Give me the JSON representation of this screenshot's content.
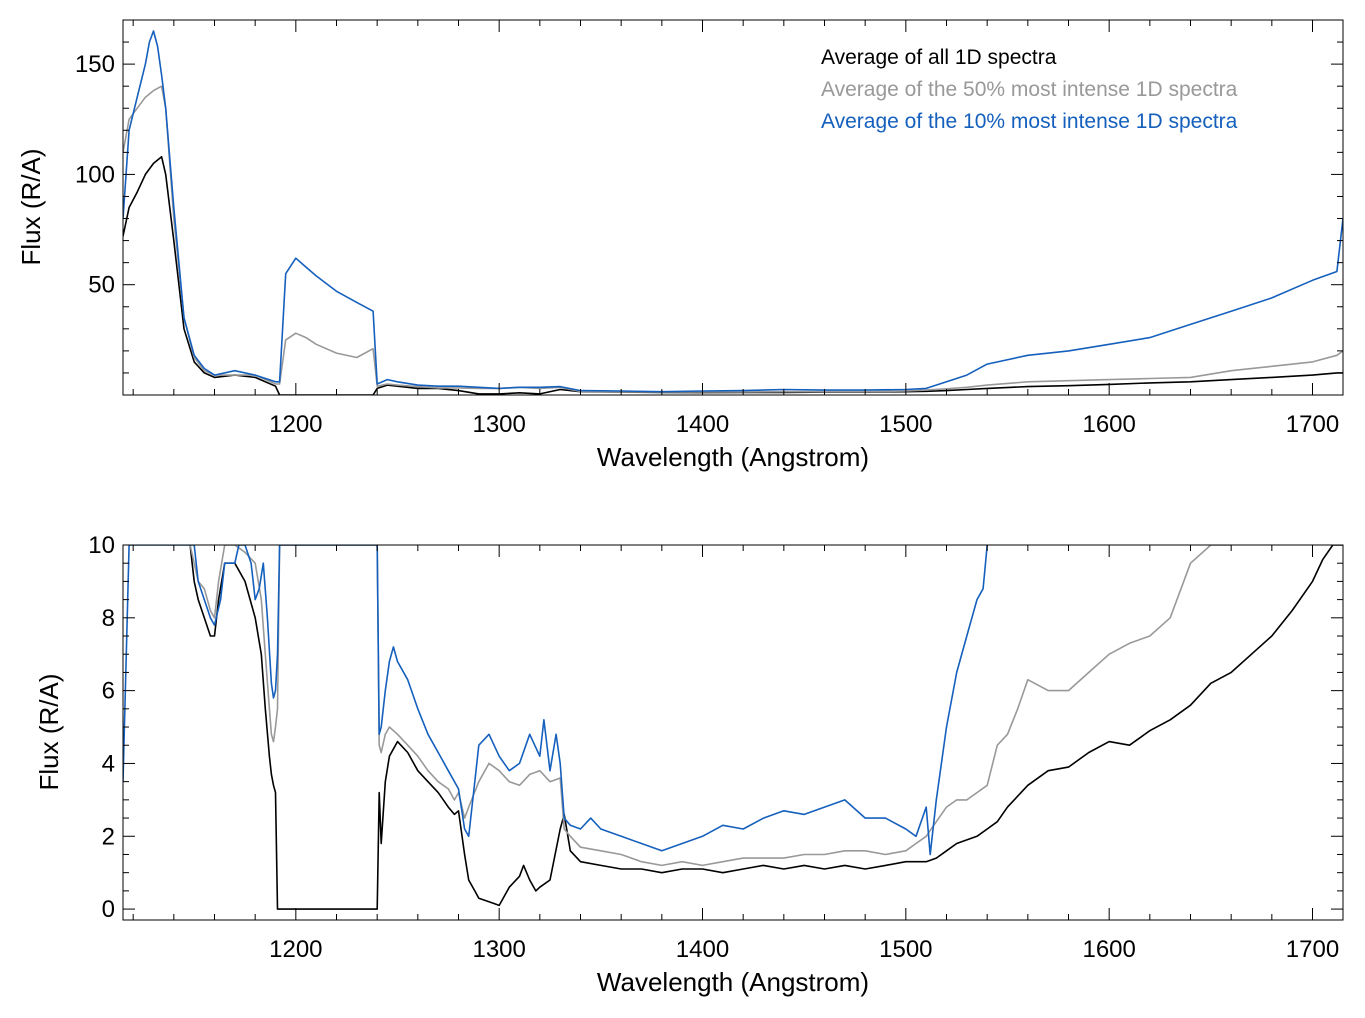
{
  "chart_data": [
    {
      "type": "line",
      "title": "",
      "xlabel": "Wavelength (Angstrom)",
      "ylabel": "Flux (R/A)",
      "xlim": [
        1115,
        1715
      ],
      "ylim": [
        0,
        170
      ],
      "xticks": [
        1200,
        1300,
        1400,
        1500,
        1600,
        1700
      ],
      "yticks": [
        50,
        100,
        150
      ],
      "legend_placement": "top-right",
      "grid": false,
      "series": [
        {
          "name": "Average of all 1D spectra",
          "color": "#000000",
          "x": [
            1115,
            1118,
            1122,
            1126,
            1130,
            1134,
            1136,
            1140,
            1145,
            1150,
            1155,
            1160,
            1170,
            1180,
            1190,
            1192,
            1195,
            1200,
            1210,
            1220,
            1230,
            1238,
            1240,
            1245,
            1250,
            1260,
            1270,
            1280,
            1290,
            1300,
            1310,
            1320,
            1330,
            1340,
            1360,
            1380,
            1400,
            1420,
            1440,
            1460,
            1480,
            1500,
            1510,
            1520,
            1530,
            1540,
            1560,
            1580,
            1600,
            1620,
            1640,
            1660,
            1680,
            1700,
            1712,
            1715
          ],
          "y": [
            72,
            85,
            92,
            100,
            105,
            108,
            100,
            70,
            30,
            15,
            10,
            8,
            9,
            8,
            4,
            0,
            0,
            0,
            0,
            0,
            0,
            0,
            3,
            4.5,
            4,
            3,
            3,
            2,
            0.5,
            0.5,
            1,
            0.5,
            2.5,
            1.5,
            1.3,
            1.2,
            1.1,
            1.2,
            1.2,
            1.3,
            1.3,
            1.5,
            1.7,
            2,
            2.5,
            3,
            3.8,
            4.2,
            4.8,
            5.5,
            6,
            7,
            8,
            9,
            10,
            10
          ]
        },
        {
          "name": "Average of the 50% most intense 1D spectra",
          "color": "#999999",
          "x": [
            1115,
            1118,
            1122,
            1126,
            1130,
            1134,
            1136,
            1140,
            1145,
            1150,
            1155,
            1160,
            1170,
            1180,
            1190,
            1192,
            1195,
            1200,
            1205,
            1210,
            1220,
            1230,
            1238,
            1240,
            1245,
            1250,
            1260,
            1270,
            1280,
            1290,
            1300,
            1310,
            1320,
            1330,
            1340,
            1360,
            1380,
            1400,
            1420,
            1440,
            1460,
            1480,
            1500,
            1510,
            1520,
            1530,
            1540,
            1560,
            1580,
            1600,
            1620,
            1640,
            1660,
            1680,
            1700,
            1712,
            1715
          ],
          "y": [
            110,
            125,
            130,
            135,
            138,
            140,
            130,
            80,
            35,
            17,
            11,
            9,
            9,
            9,
            5,
            5,
            25,
            28,
            26,
            23,
            19,
            17,
            21,
            4,
            5,
            4.5,
            3.8,
            3.2,
            3.2,
            3,
            3,
            3.5,
            3,
            3.5,
            1.6,
            1.4,
            1.3,
            1.4,
            1.4,
            1.5,
            1.5,
            1.5,
            1.8,
            2.2,
            2.8,
            3.5,
            4.5,
            6,
            6.5,
            7,
            7.5,
            8,
            11,
            13,
            15,
            18,
            20
          ]
        },
        {
          "name": "Average of the 10% most intense 1D spectra",
          "color": "#1560bd",
          "x": [
            1115,
            1118,
            1122,
            1126,
            1128,
            1130,
            1132,
            1134,
            1136,
            1140,
            1145,
            1150,
            1155,
            1160,
            1170,
            1180,
            1190,
            1192,
            1195,
            1200,
            1205,
            1210,
            1220,
            1230,
            1238,
            1240,
            1245,
            1250,
            1260,
            1270,
            1280,
            1290,
            1300,
            1310,
            1320,
            1330,
            1340,
            1360,
            1380,
            1400,
            1420,
            1440,
            1460,
            1480,
            1500,
            1510,
            1520,
            1530,
            1540,
            1560,
            1580,
            1600,
            1620,
            1640,
            1660,
            1680,
            1700,
            1712,
            1715
          ],
          "y": [
            80,
            120,
            135,
            150,
            160,
            165,
            158,
            145,
            130,
            85,
            35,
            18,
            12,
            9,
            11,
            9,
            6,
            6,
            55,
            62,
            58,
            54,
            47,
            42,
            38,
            5,
            7,
            6,
            4.5,
            4,
            4,
            3.5,
            3,
            3.5,
            3.5,
            3.8,
            2,
            1.8,
            1.5,
            1.8,
            2,
            2.5,
            2.2,
            2.2,
            2.5,
            3,
            6,
            9,
            14,
            18,
            20,
            23,
            26,
            32,
            38,
            44,
            52,
            56,
            80
          ]
        }
      ]
    },
    {
      "type": "line",
      "title": "",
      "xlabel": "Wavelength (Angstrom)",
      "ylabel": "Flux (R/A)",
      "xlim": [
        1115,
        1715
      ],
      "ylim": [
        -0.3,
        10
      ],
      "xticks": [
        1200,
        1300,
        1400,
        1500,
        1600,
        1700
      ],
      "yticks": [
        0,
        2,
        4,
        6,
        8,
        10
      ],
      "grid": false,
      "series": [
        {
          "color": "#000000",
          "x": [
            1148,
            1150,
            1152,
            1155,
            1158,
            1160,
            1162,
            1165,
            1170,
            1175,
            1180,
            1183,
            1185,
            1187,
            1188,
            1189,
            1190,
            1191,
            1240,
            1241,
            1242,
            1244,
            1246,
            1250,
            1255,
            1260,
            1265,
            1270,
            1275,
            1278,
            1280,
            1283,
            1285,
            1288,
            1290,
            1295,
            1300,
            1305,
            1310,
            1312,
            1315,
            1318,
            1320,
            1325,
            1330,
            1332,
            1335,
            1340,
            1350,
            1360,
            1370,
            1380,
            1390,
            1400,
            1410,
            1420,
            1430,
            1440,
            1450,
            1460,
            1470,
            1480,
            1490,
            1500,
            1505,
            1510,
            1515,
            1520,
            1525,
            1530,
            1535,
            1540,
            1545,
            1550,
            1560,
            1570,
            1580,
            1590,
            1600,
            1610,
            1620,
            1630,
            1640,
            1650,
            1660,
            1670,
            1680,
            1690,
            1700,
            1705,
            1710,
            1715
          ],
          "y": [
            10,
            9,
            8.5,
            8,
            7.5,
            7.5,
            8.5,
            9.5,
            9.5,
            9,
            8,
            7,
            5.5,
            4.2,
            3.7,
            3.4,
            3.2,
            0,
            0,
            3.2,
            1.8,
            3.5,
            4.2,
            4.6,
            4.3,
            3.8,
            3.5,
            3.2,
            2.8,
            2.6,
            2.7,
            1.5,
            0.8,
            0.5,
            0.3,
            0.2,
            0.1,
            0.6,
            0.9,
            1.2,
            0.8,
            0.5,
            0.6,
            0.8,
            2.2,
            2.6,
            1.6,
            1.3,
            1.2,
            1.1,
            1.1,
            1,
            1.1,
            1.1,
            1,
            1.1,
            1.2,
            1.1,
            1.2,
            1.1,
            1.2,
            1.1,
            1.2,
            1.3,
            1.3,
            1.3,
            1.4,
            1.6,
            1.8,
            1.9,
            2,
            2.2,
            2.4,
            2.8,
            3.4,
            3.8,
            3.9,
            4.3,
            4.6,
            4.5,
            4.9,
            5.2,
            5.6,
            6.2,
            6.5,
            7,
            7.5,
            8.2,
            9,
            9.6,
            10,
            10
          ]
        },
        {
          "color": "#999999",
          "x": [
            1148,
            1150,
            1152,
            1155,
            1158,
            1160,
            1162,
            1165,
            1170,
            1175,
            1180,
            1183,
            1185,
            1187,
            1188,
            1189,
            1190,
            1191,
            1192,
            1240,
            1241,
            1242,
            1244,
            1246,
            1250,
            1255,
            1260,
            1265,
            1270,
            1275,
            1278,
            1280,
            1283,
            1285,
            1290,
            1295,
            1300,
            1305,
            1310,
            1315,
            1320,
            1325,
            1330,
            1332,
            1335,
            1340,
            1350,
            1360,
            1370,
            1380,
            1390,
            1400,
            1410,
            1420,
            1430,
            1440,
            1450,
            1460,
            1470,
            1480,
            1490,
            1500,
            1505,
            1510,
            1515,
            1520,
            1525,
            1530,
            1535,
            1540,
            1545,
            1550,
            1555,
            1560,
            1570,
            1580,
            1590,
            1600,
            1610,
            1620,
            1630,
            1640,
            1650,
            1660
          ],
          "y": [
            10,
            9.5,
            9,
            8.8,
            8.2,
            8,
            9,
            10,
            10,
            9.8,
            9.5,
            8.5,
            7,
            5.5,
            4.8,
            4.6,
            5,
            5.5,
            10,
            10,
            4.5,
            4.3,
            4.8,
            5,
            4.8,
            4.5,
            4.2,
            3.8,
            3.5,
            3.3,
            3,
            3.2,
            2.5,
            2.8,
            3.5,
            4,
            3.8,
            3.5,
            3.4,
            3.7,
            3.8,
            3.5,
            3.6,
            2.2,
            2,
            1.7,
            1.6,
            1.5,
            1.3,
            1.2,
            1.3,
            1.2,
            1.3,
            1.4,
            1.4,
            1.4,
            1.5,
            1.5,
            1.6,
            1.6,
            1.5,
            1.6,
            1.8,
            2,
            2.4,
            2.8,
            3,
            3,
            3.2,
            3.4,
            4.5,
            4.8,
            5.5,
            6.3,
            6,
            6,
            6.5,
            7,
            7.3,
            7.5,
            8,
            9.5,
            10,
            10
          ]
        },
        {
          "color": "#1560bd",
          "x": [
            1115,
            1118,
            1150,
            1152,
            1155,
            1158,
            1160,
            1163,
            1165,
            1170,
            1172,
            1175,
            1178,
            1180,
            1182,
            1184,
            1186,
            1188,
            1189,
            1190,
            1191,
            1192,
            1240,
            1241,
            1242,
            1244,
            1246,
            1248,
            1250,
            1255,
            1260,
            1265,
            1270,
            1275,
            1280,
            1283,
            1285,
            1288,
            1290,
            1295,
            1300,
            1305,
            1310,
            1315,
            1320,
            1322,
            1325,
            1328,
            1330,
            1332,
            1335,
            1340,
            1345,
            1350,
            1360,
            1370,
            1380,
            1390,
            1400,
            1410,
            1420,
            1430,
            1440,
            1450,
            1460,
            1470,
            1480,
            1490,
            1500,
            1505,
            1510,
            1512,
            1515,
            1520,
            1525,
            1530,
            1535,
            1538,
            1540
          ],
          "y": [
            3.5,
            10,
            10,
            9,
            8.5,
            8,
            7.8,
            8.5,
            9.5,
            9.5,
            10,
            10,
            9.5,
            8.5,
            8.8,
            9.5,
            8,
            6.2,
            5.8,
            6,
            7,
            10,
            10,
            4.8,
            5,
            6,
            6.8,
            7.2,
            6.8,
            6.3,
            5.5,
            4.8,
            4.3,
            3.8,
            3.3,
            2.2,
            2,
            3.5,
            4.5,
            4.8,
            4.2,
            3.8,
            4,
            4.8,
            4.2,
            5.2,
            3.8,
            4.8,
            4,
            2.5,
            2.3,
            2.2,
            2.5,
            2.2,
            2,
            1.8,
            1.6,
            1.8,
            2,
            2.3,
            2.2,
            2.5,
            2.7,
            2.6,
            2.8,
            3,
            2.5,
            2.5,
            2.2,
            2,
            2.8,
            1.5,
            3,
            5,
            6.5,
            7.5,
            8.5,
            8.8,
            10
          ]
        }
      ]
    }
  ]
}
